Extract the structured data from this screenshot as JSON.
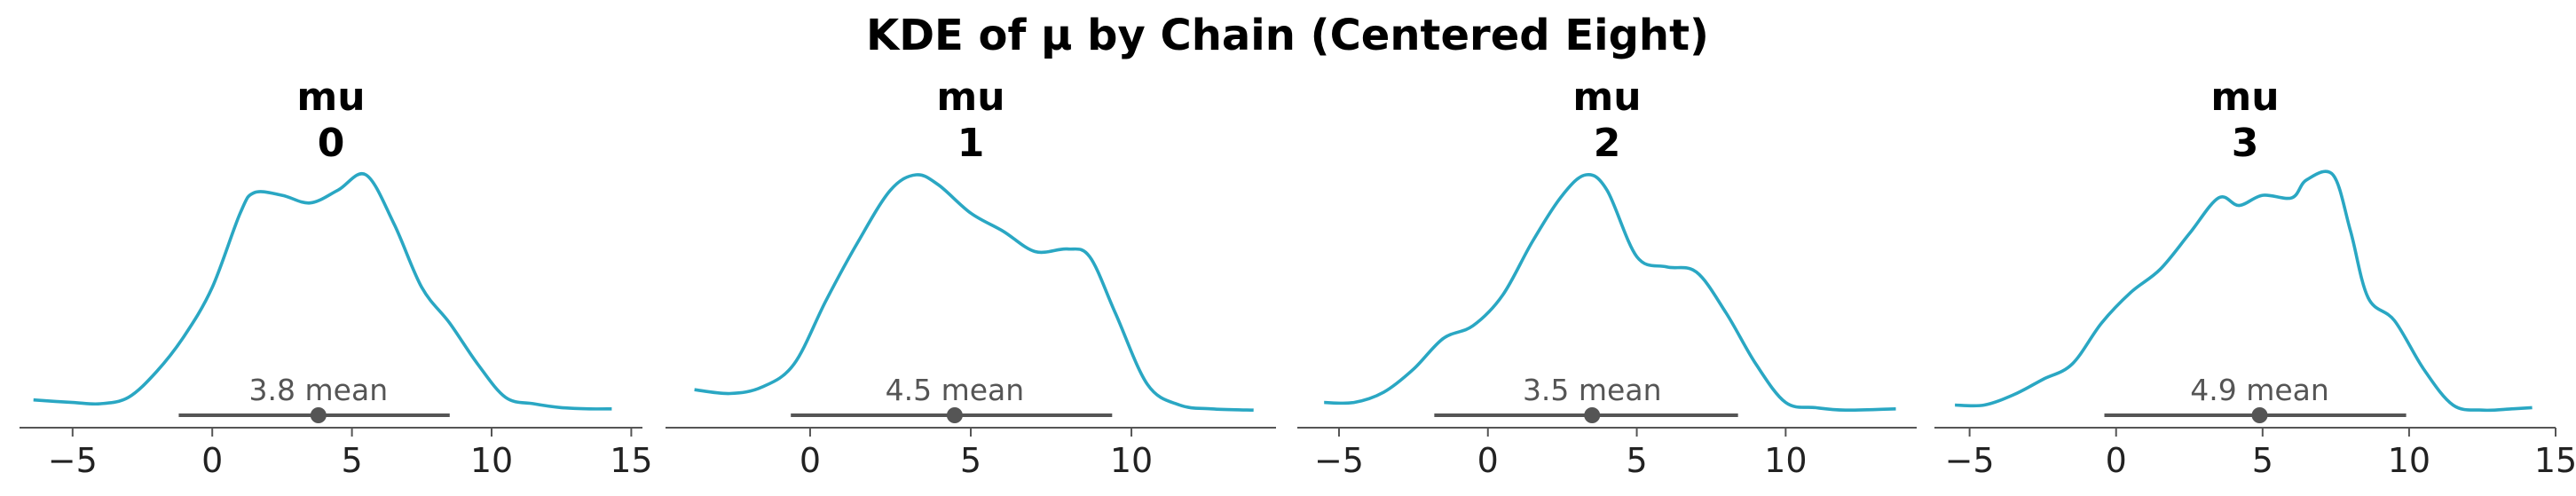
{
  "suptitle": "KDE of μ by Chain (Centered Eight)",
  "chart_data": [
    {
      "type": "line",
      "title_lines": [
        "mu",
        "0"
      ],
      "xticks": [
        -5,
        0,
        5,
        10,
        15
      ],
      "xlim": [
        -6.9,
        15.4
      ],
      "hdi": [
        -1.2,
        8.5
      ],
      "mean": 3.8,
      "mean_label": "3.8 mean",
      "kde": {
        "x": [
          -6.4,
          -5,
          -4,
          -3,
          -2,
          -1,
          0,
          1,
          1.5,
          2.5,
          3.5,
          4.5,
          5.5,
          6.5,
          7.5,
          8.5,
          9.5,
          10.5,
          11.5,
          12.5,
          13.5,
          14.3
        ],
        "density": [
          0.06,
          0.05,
          0.045,
          0.07,
          0.17,
          0.31,
          0.5,
          0.79,
          0.87,
          0.86,
          0.83,
          0.88,
          0.94,
          0.75,
          0.5,
          0.36,
          0.2,
          0.07,
          0.045,
          0.03,
          0.025,
          0.025
        ]
      }
    },
    {
      "type": "line",
      "title_lines": [
        "mu",
        "1"
      ],
      "xticks": [
        0,
        5,
        10
      ],
      "xlim": [
        -4.5,
        14.5
      ],
      "hdi": [
        -0.6,
        9.4
      ],
      "mean": 4.5,
      "mean_label": "4.5 mean",
      "kde": {
        "x": [
          -3.6,
          -2.5,
          -1.5,
          -0.5,
          0.5,
          1.5,
          2.5,
          3.3,
          4,
          5,
          6,
          7,
          8,
          8.7,
          9.5,
          10.5,
          11.5,
          12.5,
          13.8
        ],
        "density": [
          0.1,
          0.085,
          0.11,
          0.2,
          0.45,
          0.68,
          0.88,
          0.94,
          0.9,
          0.79,
          0.72,
          0.64,
          0.65,
          0.62,
          0.4,
          0.12,
          0.04,
          0.025,
          0.02
        ]
      }
    },
    {
      "type": "line",
      "title_lines": [
        "mu",
        "2"
      ],
      "xticks": [
        -5,
        0,
        5,
        10
      ],
      "xlim": [
        -6.4,
        14.4
      ],
      "hdi": [
        -1.8,
        8.4
      ],
      "mean": 3.5,
      "mean_label": "3.5 mean",
      "kde": {
        "x": [
          -5.5,
          -4.5,
          -3.5,
          -2.5,
          -1.5,
          -0.5,
          0.5,
          1.5,
          2.5,
          3.3,
          4,
          5,
          6,
          7,
          8,
          9,
          10,
          11,
          12,
          13.7
        ],
        "density": [
          0.05,
          0.05,
          0.09,
          0.18,
          0.3,
          0.35,
          0.47,
          0.68,
          0.86,
          0.94,
          0.88,
          0.62,
          0.58,
          0.56,
          0.4,
          0.2,
          0.05,
          0.03,
          0.02,
          0.025
        ]
      }
    },
    {
      "type": "line",
      "title_lines": [
        "mu",
        "3"
      ],
      "xticks": [
        -5,
        0,
        5,
        10,
        15
      ],
      "xlim": [
        -6.2,
        15.0
      ],
      "hdi": [
        -0.4,
        9.9
      ],
      "mean": 4.9,
      "mean_label": "4.9 mean",
      "kde": {
        "x": [
          -5.5,
          -4.5,
          -3.5,
          -2.5,
          -1.5,
          -0.5,
          0.5,
          1.5,
          2.5,
          3.5,
          4.2,
          5,
          6,
          6.5,
          7.4,
          8,
          8.6,
          9.5,
          10.5,
          11.5,
          12.5,
          13.5,
          14.2
        ],
        "density": [
          0.04,
          0.04,
          0.08,
          0.14,
          0.2,
          0.36,
          0.48,
          0.57,
          0.71,
          0.85,
          0.82,
          0.86,
          0.85,
          0.92,
          0.94,
          0.72,
          0.46,
          0.37,
          0.18,
          0.04,
          0.02,
          0.025,
          0.03
        ]
      }
    }
  ]
}
